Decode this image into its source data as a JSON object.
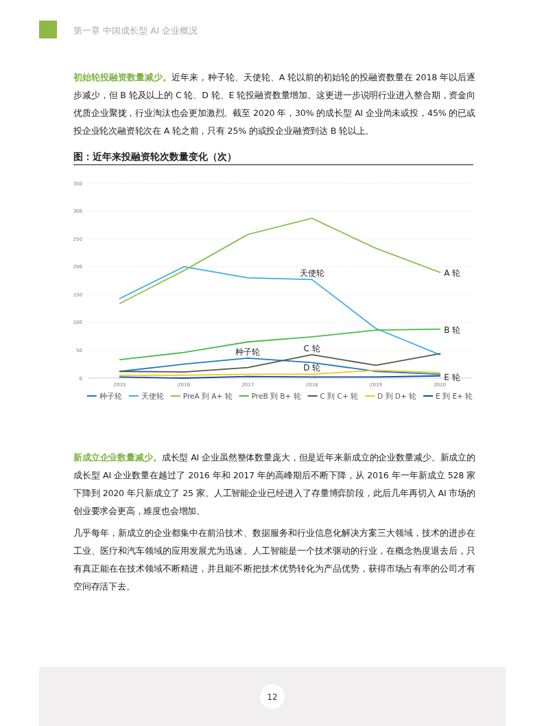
{
  "chart_data": {
    "type": "line",
    "title": "图：近年来投融资轮次数量变化（次）",
    "categories": [
      "2015",
      "2016",
      "2017",
      "2018",
      "2019",
      "2020"
    ],
    "series": [
      {
        "name": "种子轮",
        "color": "#1f78c1",
        "values": [
          12,
          25,
          36,
          28,
          12,
          7
        ]
      },
      {
        "name": "天使轮",
        "color": "#3aaee8",
        "values": [
          143,
          200,
          180,
          177,
          89,
          42
        ]
      },
      {
        "name": "PreA 到 A+ 轮",
        "color": "#8cc04a",
        "values": [
          134,
          193,
          258,
          287,
          233,
          190
        ]
      },
      {
        "name": "PreB 到 B+ 轮",
        "color": "#4cb848",
        "values": [
          33,
          46,
          65,
          74,
          86,
          88
        ]
      },
      {
        "name": "C 到 C+ 轮",
        "color": "#505a4a",
        "values": [
          12,
          11,
          19,
          42,
          23,
          44
        ]
      },
      {
        "name": "D 到 D+ 轮",
        "color": "#f5c518",
        "values": [
          5,
          5,
          7,
          7,
          14,
          10
        ]
      },
      {
        "name": "E 到 E+ 轮",
        "color": "#0f4c9a",
        "values": [
          2,
          0,
          3,
          2,
          2,
          4
        ]
      }
    ],
    "ylim": [
      0,
      350
    ],
    "yticks": [
      0,
      50,
      100,
      150,
      200,
      250,
      300,
      350
    ],
    "grid": "y",
    "legend": "bottom",
    "annotations": [
      "第一章   中国成长型 AI 企业概况",
      "初始轮投融资数量减少。",
      "近年来，种子轮、天使轮、A 轮以前的初始轮的投融资数量在 2018 年以后逐步减少，但 B 轮及以上的 C 轮、D 轮、E 轮投融资数量增加。这更进一步说明行业进入整合期，资金向优质企业聚拢，行业淘汰也会更加激烈。截至 2020 年，30% 的成长型 AI 企业尚未或投，45% 的已或投企业轮次融资轮次在 A 轮之前，只有 25% 的或投企业融资到达 B 轮以上。",
      "新成立企业数量减少。",
      "成长型 AI 企业虽然整体数量庞大，但是近年来新成立的企业数量减少。新成立的成长型 AI 企业数量在越过了 2016 年和 2017 年的高峰期后不断下降，从 2016 年一年新成立 528 家下降到 2020 年只新成立了 25 家。人工智能企业已经进入了存量博弈阶段，此后几年再切入 AI 市场的创业要求会更高，难度也会增加。",
      "几乎每年，新成立的企业都集中在前沿技术、数据服务和行业信息化解决方案三大领域，技术的进步在工业、医疗和汽车领域的应用发展尤为迅速。人工智能是一个技术驱动的行业，在概念热度退去后，只有真正能在在技术领域不断精进，并且能不断把技术优势转化为产品优势，获得市场占有率的公司才有空间存活下去。",
      "12",
      {
        "text": "天使轮",
        "x": "2018",
        "y": 177
      },
      {
        "text": "A 轮",
        "x": "2020",
        "y": 190
      },
      {
        "text": "B 轮",
        "x": "2020",
        "y": 88
      },
      {
        "text": "种子轮",
        "x": "2017",
        "y": 36
      },
      {
        "text": "C 轮",
        "x": "2018",
        "y": 42
      },
      {
        "text": "D 轮",
        "x": "2018",
        "y": 7
      },
      {
        "text": "E 轮",
        "x": "2020",
        "y": 3
      }
    ]
  }
}
